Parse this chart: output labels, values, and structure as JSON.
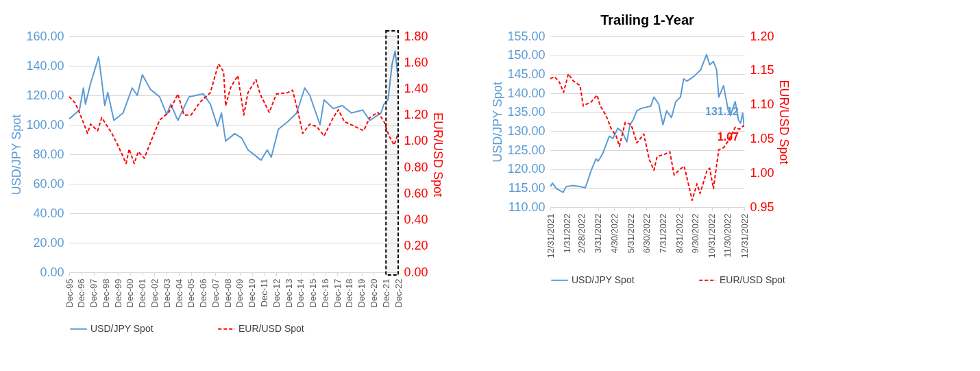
{
  "chart_data": [
    {
      "type": "line",
      "ylabel": "USD/JPY Spot",
      "y2label": "EUR/USD Spot",
      "xlim": [
        "1995-12-31",
        "2022-12-31"
      ],
      "xticks": [
        {
          "value": "1995-12-31",
          "label": "Dec-95"
        },
        {
          "value": "1996-12-31",
          "label": "Dec-96"
        },
        {
          "value": "1997-12-31",
          "label": "Dec-97"
        },
        {
          "value": "1998-12-31",
          "label": "Dec-98"
        },
        {
          "value": "1999-12-31",
          "label": "Dec-99"
        },
        {
          "value": "2000-12-31",
          "label": "Dec-00"
        },
        {
          "value": "2001-12-31",
          "label": "Dec-01"
        },
        {
          "value": "2002-12-31",
          "label": "Dec-02"
        },
        {
          "value": "2003-12-31",
          "label": "Dec-03"
        },
        {
          "value": "2004-12-31",
          "label": "Dec-04"
        },
        {
          "value": "2005-12-31",
          "label": "Dec-05"
        },
        {
          "value": "2006-12-31",
          "label": "Dec-06"
        },
        {
          "value": "2007-12-31",
          "label": "Dec-07"
        },
        {
          "value": "2008-12-31",
          "label": "Dec-08"
        },
        {
          "value": "2009-12-31",
          "label": "Dec-09"
        },
        {
          "value": "2010-12-31",
          "label": "Dec-10"
        },
        {
          "value": "2011-12-31",
          "label": "Dec-11"
        },
        {
          "value": "2012-12-31",
          "label": "Dec-12"
        },
        {
          "value": "2013-12-31",
          "label": "Dec-13"
        },
        {
          "value": "2014-12-31",
          "label": "Dec-14"
        },
        {
          "value": "2015-12-31",
          "label": "Dec-15"
        },
        {
          "value": "2016-12-31",
          "label": "Dec-16"
        },
        {
          "value": "2017-12-31",
          "label": "Dec-17"
        },
        {
          "value": "2018-12-31",
          "label": "Dec-18"
        },
        {
          "value": "2019-12-31",
          "label": "Dec-19"
        },
        {
          "value": "2020-12-31",
          "label": "Dec-20"
        },
        {
          "value": "2021-12-31",
          "label": "Dec-21"
        },
        {
          "value": "2022-12-31",
          "label": "Dec-22"
        }
      ],
      "ylim": [
        0,
        160
      ],
      "yticks": [
        {
          "value": 0,
          "label": "0.00"
        },
        {
          "value": 20,
          "label": "20.00"
        },
        {
          "value": 40,
          "label": "40.00"
        },
        {
          "value": 60,
          "label": "60.00"
        },
        {
          "value": 80,
          "label": "80.00"
        },
        {
          "value": 100,
          "label": "100.00"
        },
        {
          "value": 120,
          "label": "120.00"
        },
        {
          "value": 140,
          "label": "140.00"
        },
        {
          "value": 160,
          "label": "160.00"
        }
      ],
      "y2lim": [
        0,
        1.8
      ],
      "y2ticks": [
        {
          "value": 0,
          "label": "0.00"
        },
        {
          "value": 0.2,
          "label": "0.20"
        },
        {
          "value": 0.4,
          "label": "0.40"
        },
        {
          "value": 0.6,
          "label": "0.60"
        },
        {
          "value": 0.8,
          "label": "0.80"
        },
        {
          "value": 1.0,
          "label": "1.00"
        },
        {
          "value": 1.2,
          "label": "1.20"
        },
        {
          "value": 1.4,
          "label": "1.40"
        },
        {
          "value": 1.6,
          "label": "1.60"
        },
        {
          "value": 1.8,
          "label": "1.80"
        }
      ],
      "grid": "y",
      "legend": "bottom",
      "bands": [
        {
          "axis": "x",
          "from": "2021-12-31",
          "to": "2022-12-31",
          "color": "#000000"
        }
      ],
      "series": [
        {
          "name": "USD/JPY Spot",
          "color": "#5b9bd5",
          "line_style": "solid",
          "x": [
            "1995-12-31",
            "1996-11",
            "1997-03",
            "1997-05",
            "1997-10",
            "1998-06",
            "1998-09",
            "1998-12",
            "1999-03",
            "1999-09",
            "2000-06",
            "2001-03",
            "2001-08",
            "2002-01",
            "2002-09",
            "2003-06",
            "2004-01",
            "2004-05",
            "2004-12",
            "2005-11",
            "2007-01",
            "2007-08",
            "2008-03",
            "2008-07",
            "2008-11",
            "2009-08",
            "2010-03",
            "2010-09",
            "2011-10",
            "2012-04",
            "2012-08",
            "2013-03",
            "2013-12",
            "2014-09",
            "2015-05",
            "2015-10",
            "2016-08",
            "2016-12",
            "2017-09",
            "2018-06",
            "2019-03",
            "2020-02",
            "2020-09",
            "2021-08",
            "2021-11",
            "2022-03",
            "2022-07",
            "2022-10",
            "2022-12-31"
          ],
          "values": [
            104,
            110,
            125,
            114,
            128,
            146,
            130,
            113,
            122,
            103,
            108,
            125,
            120,
            134,
            124,
            119,
            107,
            114,
            103,
            119,
            121,
            114,
            99,
            108,
            89,
            94,
            91,
            83,
            76,
            83,
            78,
            97,
            102,
            108,
            125,
            120,
            100,
            117,
            111,
            113,
            108,
            110,
            103,
            108,
            114,
            117,
            141,
            150,
            131
          ]
        },
        {
          "name": "EUR/USD Spot",
          "color": "#ff0000",
          "line_style": "dashed",
          "axis": "y2",
          "x": [
            "1995-12-31",
            "1996-07",
            "1996-12",
            "1997-07",
            "1997-10",
            "1998-05",
            "1998-09",
            "1999-07",
            "2000-02",
            "2000-09",
            "2000-12",
            "2001-05",
            "2001-09",
            "2002-03",
            "2002-09",
            "2003-06",
            "2004-03",
            "2004-12",
            "2005-06",
            "2006-01",
            "2006-10",
            "2007-08",
            "2008-04",
            "2008-09",
            "2008-11",
            "2009-04",
            "2009-11",
            "2010-05",
            "2010-09",
            "2011-05",
            "2011-09",
            "2012-06",
            "2013-01",
            "2013-12",
            "2014-05",
            "2014-11",
            "2015-03",
            "2015-10",
            "2016-05",
            "2016-12",
            "2017-09",
            "2018-02",
            "2018-08",
            "2019-07",
            "2020-03",
            "2020-09",
            "2021-05",
            "2021-11",
            "2022-04",
            "2022-09",
            "2022-12-31"
          ],
          "values": [
            1.34,
            1.29,
            1.2,
            1.06,
            1.13,
            1.08,
            1.18,
            1.06,
            0.95,
            0.83,
            0.94,
            0.83,
            0.92,
            0.87,
            0.99,
            1.16,
            1.22,
            1.36,
            1.2,
            1.2,
            1.3,
            1.37,
            1.59,
            1.53,
            1.27,
            1.41,
            1.5,
            1.2,
            1.37,
            1.47,
            1.36,
            1.22,
            1.36,
            1.37,
            1.39,
            1.2,
            1.06,
            1.13,
            1.11,
            1.04,
            1.18,
            1.24,
            1.15,
            1.11,
            1.08,
            1.18,
            1.22,
            1.15,
            1.04,
            0.97,
            1.06
          ]
        }
      ]
    },
    {
      "type": "line",
      "title": "Trailing 1-Year",
      "ylabel": "USD/JPY Spot",
      "y2label": "EUR/USD Spot",
      "xlim": [
        "2021-12-31",
        "2022-12-31"
      ],
      "xticks": [
        {
          "value": "2021-12-31",
          "label": "12/31/2021"
        },
        {
          "value": "2022-01-31",
          "label": "1/31/2022"
        },
        {
          "value": "2022-02-28",
          "label": "2/28/2022"
        },
        {
          "value": "2022-03-31",
          "label": "3/31/2022"
        },
        {
          "value": "2022-04-30",
          "label": "4/30/2022"
        },
        {
          "value": "2022-05-31",
          "label": "5/31/2022"
        },
        {
          "value": "2022-06-30",
          "label": "6/30/2022"
        },
        {
          "value": "2022-07-31",
          "label": "7/31/2022"
        },
        {
          "value": "2022-08-31",
          "label": "8/31/2022"
        },
        {
          "value": "2022-09-30",
          "label": "9/30/2022"
        },
        {
          "value": "2022-10-31",
          "label": "10/31/2022"
        },
        {
          "value": "2022-11-30",
          "label": "11/30/2022"
        },
        {
          "value": "2022-12-31",
          "label": "12/31/2022"
        }
      ],
      "ylim": [
        110,
        155
      ],
      "yticks": [
        {
          "value": 110,
          "label": "110.00"
        },
        {
          "value": 115,
          "label": "115.00"
        },
        {
          "value": 120,
          "label": "120.00"
        },
        {
          "value": 125,
          "label": "125.00"
        },
        {
          "value": 130,
          "label": "130.00"
        },
        {
          "value": 135,
          "label": "135.00"
        },
        {
          "value": 140,
          "label": "140.00"
        },
        {
          "value": 145,
          "label": "145.00"
        },
        {
          "value": 150,
          "label": "150.00"
        },
        {
          "value": 155,
          "label": "155.00"
        }
      ],
      "y2lim": [
        0.95,
        1.2
      ],
      "y2ticks": [
        {
          "value": 0.95,
          "label": "0.95"
        },
        {
          "value": 1.0,
          "label": "1.00"
        },
        {
          "value": 1.05,
          "label": "1.05"
        },
        {
          "value": 1.1,
          "label": "1.10"
        },
        {
          "value": 1.15,
          "label": "1.15"
        },
        {
          "value": 1.2,
          "label": "1.20"
        }
      ],
      "grid": "y",
      "legend": "bottom",
      "series": [
        {
          "name": "USD/JPY Spot",
          "color": "#5b9bd5",
          "line_style": "solid",
          "x": [
            "2021-12-31",
            "2022-01-04",
            "2022-01-12",
            "2022-01-24",
            "2022-01-30",
            "2022-02-12",
            "2022-03-01",
            "2022-03-07",
            "2022-03-18",
            "2022-03-27",
            "2022-03-31",
            "2022-04-08",
            "2022-04-21",
            "2022-04-28",
            "2022-05-07",
            "2022-05-15",
            "2022-05-24",
            "2022-05-30",
            "2022-06-05",
            "2022-06-12",
            "2022-06-20",
            "2022-07-08",
            "2022-07-14",
            "2022-07-23",
            "2022-07-31",
            "2022-08-07",
            "2022-08-16",
            "2022-08-24",
            "2022-09-02",
            "2022-09-08",
            "2022-09-14",
            "2022-09-27",
            "2022-10-10",
            "2022-10-21",
            "2022-10-27",
            "2022-11-03",
            "2022-11-09",
            "2022-11-13",
            "2022-11-22",
            "2022-12-01",
            "2022-12-05",
            "2022-12-14",
            "2022-12-20",
            "2022-12-24",
            "2022-12-28",
            "2022-12-31"
          ],
          "values": [
            115.4,
            116.3,
            114.8,
            113.9,
            115.4,
            115.7,
            115.3,
            115.1,
            119.7,
            122.7,
            122.1,
            123.9,
            128.7,
            128.1,
            130.8,
            129.9,
            127.2,
            131.7,
            133.0,
            135.4,
            136.0,
            136.6,
            139.0,
            137.2,
            131.7,
            135.4,
            133.6,
            137.8,
            139.0,
            143.8,
            143.2,
            144.4,
            146.2,
            150.2,
            147.5,
            148.4,
            146.2,
            139.0,
            142.0,
            135.4,
            134.2,
            137.8,
            133.0,
            132.1,
            134.8,
            131.12
          ],
          "value_labels": [
            null,
            null,
            null,
            null,
            null,
            null,
            null,
            null,
            null,
            null,
            null,
            null,
            null,
            null,
            null,
            null,
            null,
            null,
            null,
            null,
            null,
            null,
            null,
            null,
            null,
            null,
            null,
            null,
            null,
            null,
            null,
            null,
            null,
            null,
            null,
            null,
            null,
            null,
            null,
            null,
            null,
            null,
            null,
            null,
            null,
            "131.12"
          ]
        },
        {
          "name": "EUR/USD Spot",
          "color": "#ff0000",
          "line_style": "dashed",
          "axis": "y2",
          "x": [
            "2021-12-31",
            "2022-01-08",
            "2022-01-17",
            "2022-01-25",
            "2022-02-03",
            "2022-02-12",
            "2022-02-25",
            "2022-03-03",
            "2022-03-10",
            "2022-03-18",
            "2022-03-29",
            "2022-04-04",
            "2022-04-15",
            "2022-04-25",
            "2022-05-04",
            "2022-05-10",
            "2022-05-21",
            "2022-06-01",
            "2022-06-12",
            "2022-06-25",
            "2022-07-05",
            "2022-07-14",
            "2022-07-20",
            "2022-08-02",
            "2022-08-13",
            "2022-08-21",
            "2022-08-30",
            "2022-09-09",
            "2022-09-24",
            "2022-10-03",
            "2022-10-09",
            "2022-10-22",
            "2022-10-27",
            "2022-11-03",
            "2022-11-13",
            "2022-11-22",
            "2022-12-01",
            "2022-12-14",
            "2022-12-22",
            "2022-12-31"
          ],
          "values": [
            1.138,
            1.141,
            1.133,
            1.118,
            1.145,
            1.135,
            1.128,
            1.098,
            1.101,
            1.104,
            1.114,
            1.098,
            1.084,
            1.064,
            1.054,
            1.039,
            1.074,
            1.071,
            1.044,
            1.057,
            1.02,
            1.004,
            1.024,
            1.027,
            1.031,
            0.997,
            1.004,
            1.01,
            0.96,
            0.984,
            0.97,
            1.004,
            1.007,
            0.977,
            1.034,
            1.037,
            1.047,
            1.067,
            1.064,
            1.07
          ],
          "value_labels": [
            null,
            null,
            null,
            null,
            null,
            null,
            null,
            null,
            null,
            null,
            null,
            null,
            null,
            null,
            null,
            null,
            null,
            null,
            null,
            null,
            null,
            null,
            null,
            null,
            null,
            null,
            null,
            null,
            null,
            null,
            null,
            null,
            null,
            null,
            null,
            null,
            null,
            null,
            null,
            "1.07"
          ]
        }
      ]
    }
  ]
}
